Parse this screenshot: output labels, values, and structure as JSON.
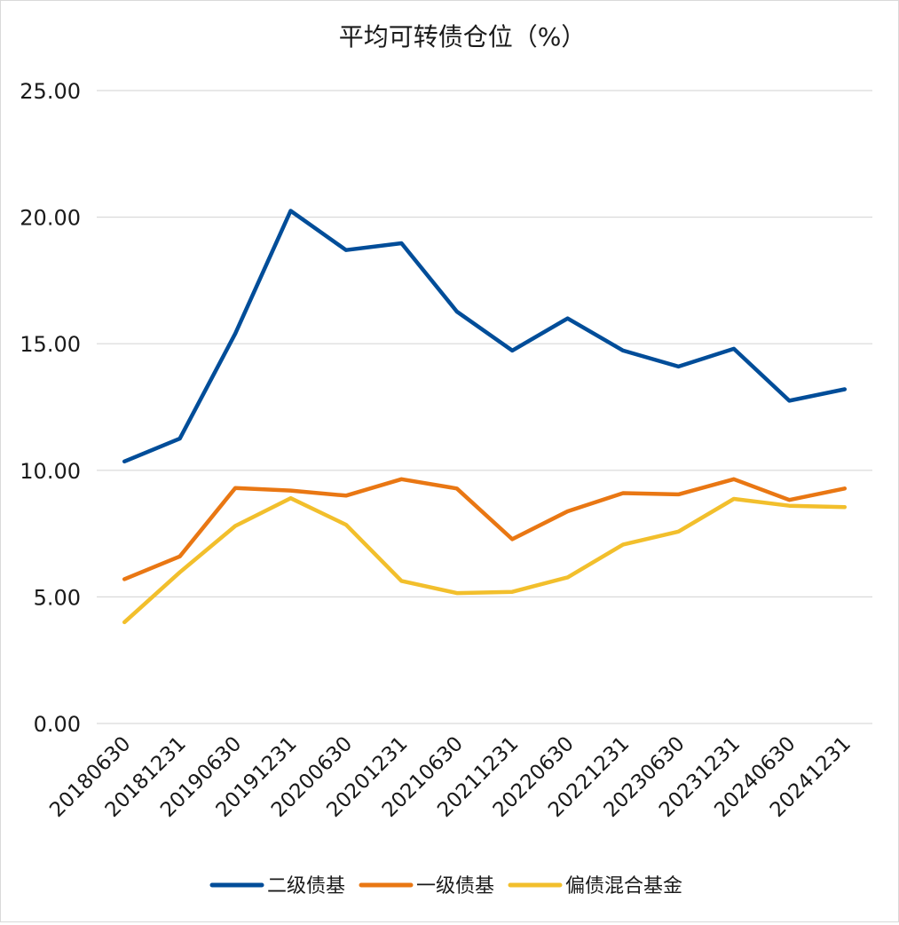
{
  "chart_data": {
    "type": "line",
    "title": "平均可转债仓位（%）",
    "categories": [
      "20180630",
      "20181231",
      "20190630",
      "20191231",
      "20200630",
      "20201231",
      "20210630",
      "20211231",
      "20220630",
      "20221231",
      "20230630",
      "20231231",
      "20240630",
      "20241231"
    ],
    "series": [
      {
        "name": "二级债基",
        "color": "#004d99",
        "values": [
          10.35,
          11.25,
          15.4,
          20.25,
          18.7,
          18.97,
          16.27,
          14.73,
          16.0,
          14.73,
          14.1,
          14.8,
          12.75,
          13.2
        ]
      },
      {
        "name": "一级债基",
        "color": "#e97713",
        "values": [
          5.7,
          6.6,
          9.3,
          9.2,
          9.0,
          9.65,
          9.28,
          7.28,
          8.38,
          9.1,
          9.05,
          9.65,
          8.83,
          9.28
        ]
      },
      {
        "name": "偏债混合基金",
        "color": "#f2bf2c",
        "values": [
          4.0,
          5.97,
          7.8,
          8.9,
          7.85,
          5.63,
          5.15,
          5.2,
          5.77,
          7.07,
          7.58,
          8.87,
          8.6,
          8.55
        ]
      }
    ],
    "ylim": [
      0,
      25
    ],
    "yticks": [
      "0.00",
      "5.00",
      "10.00",
      "15.00",
      "20.00",
      "25.00"
    ],
    "grid": true,
    "legend_position": "bottom"
  }
}
